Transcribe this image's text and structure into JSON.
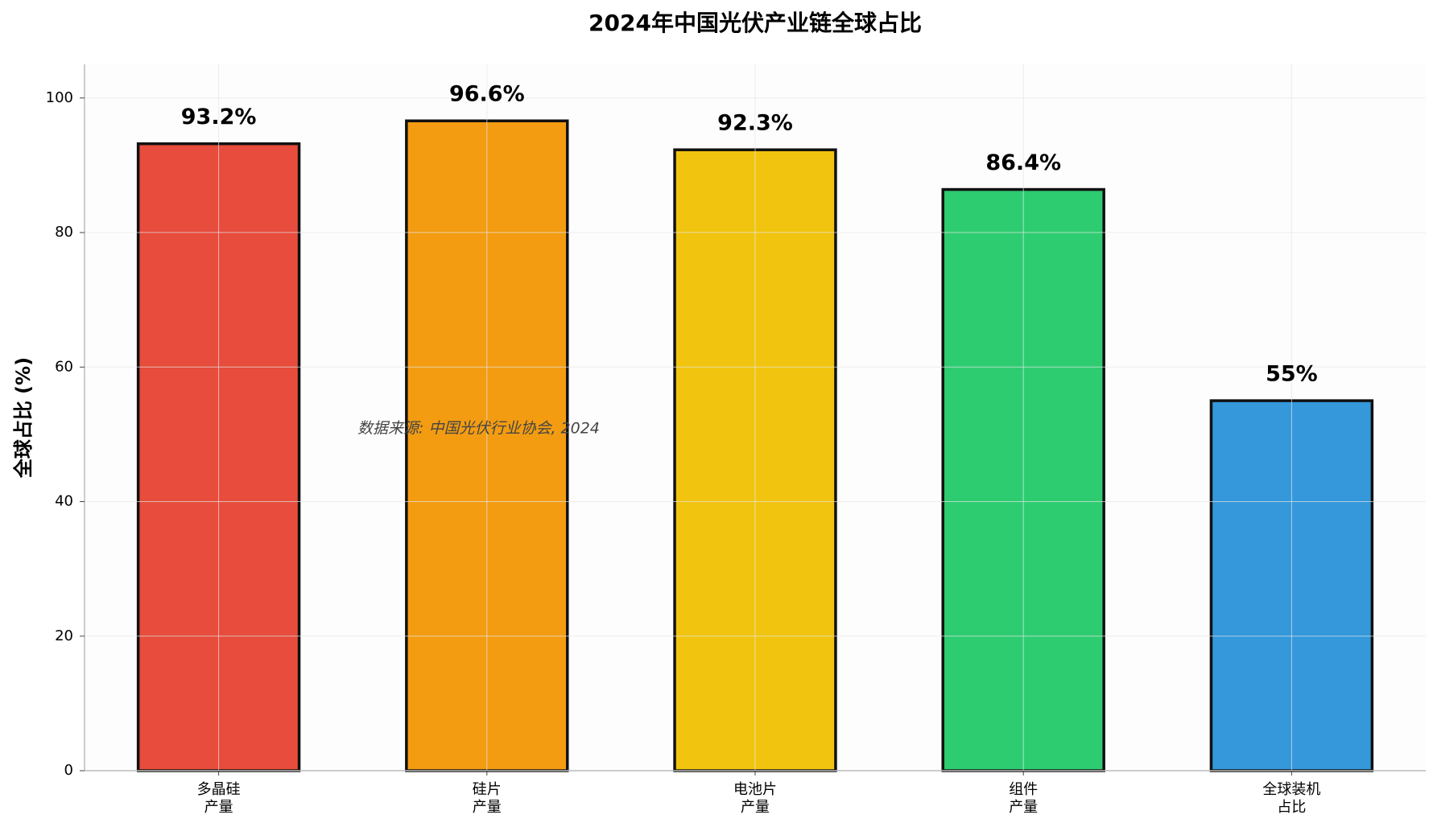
{
  "chart_data": {
    "type": "bar",
    "title": "2024年中国光伏产业链全球占比",
    "ylabel": "全球占比 (%)",
    "annotation": "数据来源: 中国光伏行业协会, 2024",
    "categories": [
      [
        "多晶硅",
        "产量"
      ],
      [
        "硅片",
        "产量"
      ],
      [
        "电池片",
        "产量"
      ],
      [
        "组件",
        "产量"
      ],
      [
        "全球装机",
        "占比"
      ]
    ],
    "values": [
      93.2,
      96.6,
      92.3,
      86.4,
      55
    ],
    "value_labels": [
      "93.2%",
      "96.6%",
      "92.3%",
      "86.4%",
      "55%"
    ],
    "colors": [
      "#e74c3c",
      "#f39c12",
      "#f1c40f",
      "#2ecc71",
      "#3498db"
    ],
    "ylim": [
      0,
      105
    ],
    "yticks": [
      0,
      20,
      40,
      60,
      80,
      100
    ],
    "grid": true
  }
}
